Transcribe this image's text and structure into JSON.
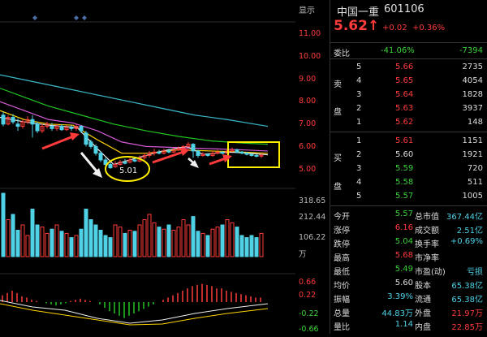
{
  "toolbar": {
    "display_label": "显示"
  },
  "stock": {
    "name": "中国一重",
    "code": "601106",
    "price": "5.62↑",
    "change": "+0.02",
    "change_pct": "+0.36%"
  },
  "commission": {
    "label": "委比",
    "ratio": "-41.06%",
    "diff": "-7394"
  },
  "orderbook": {
    "sell_label_1": "卖",
    "sell_label_2": "盘",
    "buy_label_1": "买",
    "buy_label_2": "盘",
    "asks": [
      {
        "level": "5",
        "price": "5.66",
        "vol": "2735"
      },
      {
        "level": "4",
        "price": "5.65",
        "vol": "4054"
      },
      {
        "level": "3",
        "price": "5.64",
        "vol": "1828"
      },
      {
        "level": "2",
        "price": "5.63",
        "vol": "3937"
      },
      {
        "level": "1",
        "price": "5.62",
        "vol": "148"
      }
    ],
    "bids": [
      {
        "level": "1",
        "price": "5.61",
        "vol": "1151"
      },
      {
        "level": "2",
        "price": "5.60",
        "vol": "1921"
      },
      {
        "level": "3",
        "price": "5.59",
        "vol": "720"
      },
      {
        "level": "4",
        "price": "5.58",
        "vol": "511"
      },
      {
        "level": "5",
        "price": "5.57",
        "vol": "1005"
      }
    ]
  },
  "stats": [
    {
      "l1": "今开",
      "v1": "5.57",
      "l2": "总市值",
      "v2": "367.44亿"
    },
    {
      "l1": "涨停",
      "v1": "6.16",
      "l2": "成交额",
      "v2": "2.51亿"
    },
    {
      "l1": "跌停",
      "v1": "5.04",
      "l2": "换手率",
      "v2": "+0.69%"
    },
    {
      "l1": "最高",
      "v1": "5.68",
      "l2": "市净率",
      "v2": ""
    },
    {
      "l1": "最低",
      "v1": "5.49",
      "l2": "市盈(动)",
      "v2": "亏损"
    },
    {
      "l1": "均价",
      "v1": "5.60",
      "l2": "股本",
      "v2": "65.38亿"
    },
    {
      "l1": "振幅",
      "v1": "3.39%",
      "l2": "流通",
      "v2": "65.38亿"
    },
    {
      "l1": "总量",
      "v1": "44.83万",
      "l2": "外盘",
      "v2": "21.97万"
    },
    {
      "l1": "量比",
      "v1": "1.14",
      "l2": "内盘",
      "v2": "22.85万"
    }
  ],
  "price_axis": [
    "11.00",
    "10.00",
    "9.00",
    "8.00",
    "7.00",
    "6.00",
    "5.00"
  ],
  "volume_axis": [
    "318.65",
    "212.44",
    "106.22",
    "万"
  ],
  "macd_axis": [
    "0.66",
    "0.22",
    "-0.22",
    "-0.66"
  ],
  "annotations": {
    "low_label": "5.01"
  },
  "colors": {
    "up": "#ff3b3b",
    "down": "#4fd2e6",
    "ma1": "#f0f0f0",
    "ma2": "#ffd400",
    "ma3": "#d65bd6",
    "ma4": "#22c522",
    "ma5": "#3ab8c8",
    "highlight": "#ffee00"
  }
}
